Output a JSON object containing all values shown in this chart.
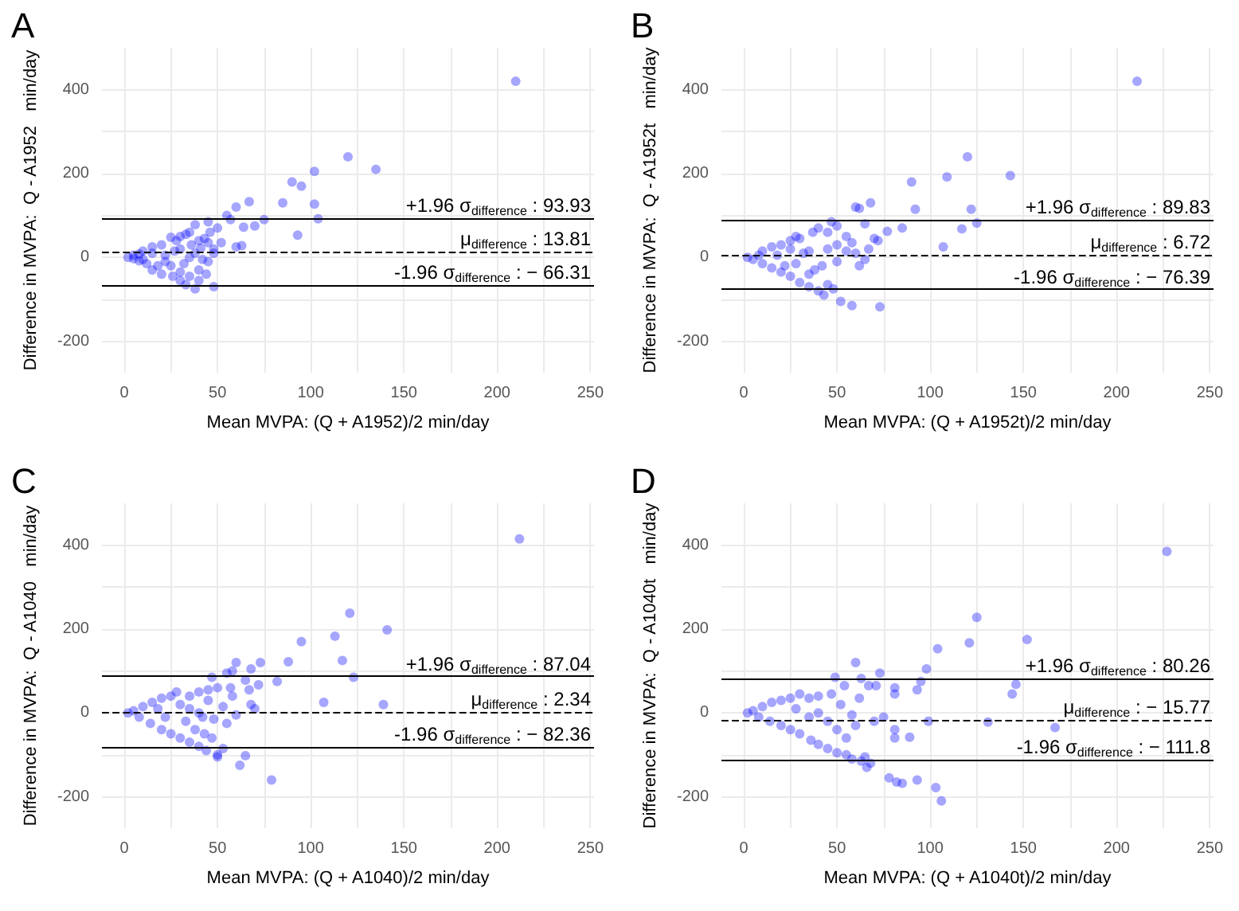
{
  "chart_data": [
    {
      "type": "scatter",
      "title": "A",
      "xlabel": "Mean MVPA: (Q + A1952)/2 min/day",
      "ylabel": "Difference in MVPA:  Q - A1952   min/day",
      "marker": "circle",
      "grid": true,
      "xlim": [
        -12,
        252
      ],
      "ylim": [
        -275,
        500
      ],
      "xticks": [
        0,
        {
          "value": 25,
          "label": null
        },
        50,
        {
          "value": 75,
          "label": null
        },
        100,
        {
          "value": 125,
          "label": null
        },
        150,
        {
          "value": 175,
          "label": null
        },
        200,
        {
          "value": 225,
          "label": null
        },
        250
      ],
      "yticks": [
        -200,
        {
          "value": -100,
          "label": null
        },
        0,
        {
          "value": 100,
          "label": null
        },
        200,
        {
          "value": 300,
          "label": null
        },
        400
      ],
      "ref_lines": [
        {
          "axis": "y",
          "value": 93.93,
          "label": "+1.96 σ$_{difference}$ : 93.93",
          "color": "#000000",
          "line_style": "solid"
        },
        {
          "axis": "y",
          "value": 13.81,
          "label": "μ$_{difference}$ : 13.81",
          "color": "#000000",
          "line_style": "dashed"
        },
        {
          "axis": "y",
          "value": -66.31,
          "label": "-1.96 σ$_{difference}$ : − 66.31",
          "color": "#000000",
          "line_style": "solid"
        }
      ],
      "series": [
        {
          "color": "#0000ff",
          "x": [
            210,
            120,
            135,
            102,
            90,
            95,
            85,
            67,
            102,
            60,
            55,
            75,
            104,
            57,
            45,
            38,
            93,
            64,
            70,
            50,
            60,
            63,
            48,
            43,
            45,
            35,
            33,
            30,
            25,
            28,
            40,
            44,
            48,
            38,
            33,
            40,
            35,
            30,
            40,
            45,
            38,
            30,
            25,
            20,
            15,
            20,
            15,
            10,
            5,
            2,
            8,
            12,
            18,
            22,
            27,
            35,
            42,
            48,
            52,
            22,
            10,
            5,
            15,
            8,
            26,
            30,
            36,
            46,
            32,
            41
          ],
          "values": [
            420,
            240,
            210,
            205,
            180,
            170,
            130,
            133,
            127,
            120,
            100,
            90,
            92,
            90,
            85,
            78,
            53,
            72,
            75,
            70,
            25,
            28,
            20,
            45,
            35,
            60,
            55,
            50,
            48,
            40,
            40,
            -40,
            -70,
            -75,
            -65,
            -55,
            -45,
            -35,
            -30,
            -10,
            10,
            20,
            -20,
            -40,
            -30,
            30,
            25,
            15,
            5,
            0,
            -8,
            -15,
            -20,
            5,
            15,
            0,
            -5,
            10,
            35,
            -10,
            -5,
            -3,
            10,
            8,
            -45,
            -55,
            30,
            60,
            -15,
            22
          ]
        }
      ]
    },
    {
      "type": "scatter",
      "title": "B",
      "xlabel": "Mean MVPA: (Q + A1952t)/2 min/day",
      "ylabel": "Difference in MVPA:  Q - A1952t   min/day",
      "marker": "circle",
      "grid": true,
      "xlim": [
        -12,
        252
      ],
      "ylim": [
        -275,
        500
      ],
      "xticks": [
        0,
        {
          "value": 25,
          "label": null
        },
        50,
        {
          "value": 75,
          "label": null
        },
        100,
        {
          "value": 125,
          "label": null
        },
        150,
        {
          "value": 175,
          "label": null
        },
        200,
        {
          "value": 225,
          "label": null
        },
        250
      ],
      "yticks": [
        -200,
        {
          "value": -100,
          "label": null
        },
        0,
        {
          "value": 100,
          "label": null
        },
        200,
        {
          "value": 300,
          "label": null
        },
        400
      ],
      "ref_lines": [
        {
          "axis": "y",
          "value": 89.83,
          "label": "+1.96 σ$_{difference}$ : 89.83",
          "color": "#000000",
          "line_style": "solid"
        },
        {
          "axis": "y",
          "value": 6.72,
          "label": "μ$_{difference}$ : 6.72",
          "color": "#000000",
          "line_style": "dashed"
        },
        {
          "axis": "y",
          "value": -76.39,
          "label": "-1.96 σ$_{difference}$ : − 76.39",
          "color": "#000000",
          "line_style": "solid"
        }
      ],
      "series": [
        {
          "color": "#0000ff",
          "x": [
            211,
            120,
            143,
            109,
            90,
            60,
            62,
            68,
            92,
            122,
            85,
            77,
            125,
            117,
            107,
            55,
            47,
            50,
            40,
            45,
            37,
            30,
            28,
            25,
            65,
            70,
            67,
            72,
            62,
            60,
            55,
            50,
            45,
            42,
            38,
            35,
            30,
            35,
            40,
            43,
            48,
            52,
            58,
            73,
            45,
            25,
            20,
            15,
            10,
            5,
            2,
            10,
            15,
            20,
            25,
            32,
            50,
            58,
            65,
            35,
            28,
            22,
            8,
            18
          ],
          "values": [
            420,
            240,
            195,
            192,
            180,
            120,
            117,
            130,
            115,
            115,
            70,
            62,
            82,
            68,
            25,
            50,
            85,
            75,
            70,
            60,
            60,
            45,
            50,
            40,
            80,
            45,
            20,
            40,
            -20,
            10,
            15,
            -10,
            20,
            -20,
            -30,
            -40,
            -60,
            -70,
            -80,
            -90,
            -75,
            -105,
            -115,
            -118,
            -65,
            -45,
            -35,
            -25,
            -15,
            -5,
            0,
            15,
            25,
            30,
            20,
            10,
            30,
            35,
            -5,
            15,
            -15,
            -20,
            5,
            5
          ]
        }
      ]
    },
    {
      "type": "scatter",
      "title": "C",
      "xlabel": "Mean MVPA: (Q + A1040)/2 min/day",
      "ylabel": "Difference in MVPA:  Q - A1040   min/day",
      "marker": "circle",
      "grid": true,
      "xlim": [
        -12,
        252
      ],
      "ylim": [
        -275,
        500
      ],
      "xticks": [
        0,
        {
          "value": 25,
          "label": null
        },
        50,
        {
          "value": 75,
          "label": null
        },
        100,
        {
          "value": 125,
          "label": null
        },
        150,
        {
          "value": 175,
          "label": null
        },
        200,
        {
          "value": 225,
          "label": null
        },
        250
      ],
      "yticks": [
        -200,
        {
          "value": -100,
          "label": null
        },
        0,
        {
          "value": 100,
          "label": null
        },
        200,
        {
          "value": 300,
          "label": null
        },
        400
      ],
      "ref_lines": [
        {
          "axis": "y",
          "value": 87.04,
          "label": "+1.96 σ$_{difference}$ : 87.04",
          "color": "#000000",
          "line_style": "solid"
        },
        {
          "axis": "y",
          "value": 2.34,
          "label": "μ$_{difference}$ : 2.34",
          "color": "#000000",
          "line_style": "dashed"
        },
        {
          "axis": "y",
          "value": -82.36,
          "label": "-1.96 σ$_{difference}$ : − 82.36",
          "color": "#000000",
          "line_style": "solid"
        }
      ],
      "series": [
        {
          "color": "#0000ff",
          "x": [
            212,
            121,
            141,
            113,
            95,
            117,
            88,
            73,
            60,
            123,
            82,
            68,
            58,
            55,
            47,
            107,
            139,
            65,
            72,
            67,
            57,
            50,
            45,
            40,
            35,
            28,
            25,
            20,
            15,
            10,
            5,
            2,
            8,
            14,
            20,
            25,
            30,
            35,
            40,
            44,
            50,
            50,
            53,
            62,
            65,
            79,
            47,
            43,
            38,
            33,
            42,
            48,
            55,
            60,
            68,
            70,
            45,
            53,
            58,
            30,
            22,
            18,
            40,
            35
          ],
          "values": [
            415,
            238,
            198,
            183,
            170,
            125,
            122,
            120,
            120,
            85,
            75,
            105,
            100,
            95,
            85,
            25,
            20,
            78,
            67,
            55,
            60,
            60,
            55,
            50,
            40,
            50,
            40,
            35,
            25,
            15,
            5,
            0,
            -10,
            -25,
            -40,
            -50,
            -60,
            -70,
            -80,
            -90,
            -105,
            -100,
            -85,
            -125,
            -102,
            -160,
            -60,
            -50,
            -40,
            -20,
            -10,
            -15,
            -25,
            -5,
            20,
            10,
            30,
            15,
            40,
            20,
            -10,
            10,
            0,
            10
          ]
        }
      ]
    },
    {
      "type": "scatter",
      "title": "D",
      "xlabel": "Mean MVPA: (Q + A1040t)/2 min/day",
      "ylabel": "Difference in MVPA:  Q - A1040t   min/day",
      "marker": "circle",
      "grid": true,
      "xlim": [
        -12,
        252
      ],
      "ylim": [
        -275,
        500
      ],
      "xticks": [
        0,
        {
          "value": 25,
          "label": null
        },
        50,
        {
          "value": 75,
          "label": null
        },
        100,
        {
          "value": 125,
          "label": null
        },
        150,
        {
          "value": 175,
          "label": null
        },
        200,
        {
          "value": 225,
          "label": null
        },
        250
      ],
      "yticks": [
        -200,
        {
          "value": -100,
          "label": null
        },
        0,
        {
          "value": 100,
          "label": null
        },
        200,
        {
          "value": 300,
          "label": null
        },
        400
      ],
      "ref_lines": [
        {
          "axis": "y",
          "value": 80.26,
          "label": "+1.96 σ$_{difference}$ : 80.26",
          "color": "#000000",
          "line_style": "solid"
        },
        {
          "axis": "y",
          "value": -15.77,
          "label": "μ$_{difference}$ : − 15.77",
          "color": "#000000",
          "line_style": "dashed"
        },
        {
          "axis": "y",
          "value": -111.8,
          "label": "-1.96 σ$_{difference}$ : − 111.8",
          "color": "#000000",
          "line_style": "solid"
        }
      ],
      "series": [
        {
          "color": "#0000ff",
          "x": [
            227,
            125,
            152,
            121,
            104,
            98,
            60,
            73,
            95,
            49,
            54,
            63,
            67,
            71,
            81,
            93,
            146,
            144,
            81,
            62,
            47,
            40,
            35,
            30,
            25,
            20,
            15,
            10,
            5,
            2,
            8,
            14,
            20,
            25,
            30,
            36,
            40,
            45,
            50,
            55,
            58,
            65,
            66,
            68,
            63,
            78,
            82,
            85,
            93,
            103,
            106,
            89,
            81,
            81,
            99,
            131,
            167,
            50,
            55,
            60,
            45,
            70,
            75,
            35,
            28,
            40,
            52,
            58
          ],
          "values": [
            385,
            228,
            175,
            167,
            153,
            105,
            120,
            95,
            75,
            85,
            65,
            82,
            65,
            65,
            60,
            55,
            68,
            45,
            45,
            35,
            45,
            40,
            35,
            45,
            35,
            30,
            25,
            15,
            5,
            0,
            -10,
            -20,
            -30,
            -40,
            -50,
            -65,
            -75,
            -85,
            -95,
            -100,
            -110,
            -105,
            -130,
            -120,
            -115,
            -155,
            -165,
            -168,
            -160,
            -178,
            -210,
            -58,
            -60,
            -40,
            -20,
            -22,
            -35,
            -40,
            -60,
            -30,
            -20,
            -20,
            -10,
            -10,
            10,
            0,
            20,
            -5
          ]
        }
      ]
    }
  ]
}
